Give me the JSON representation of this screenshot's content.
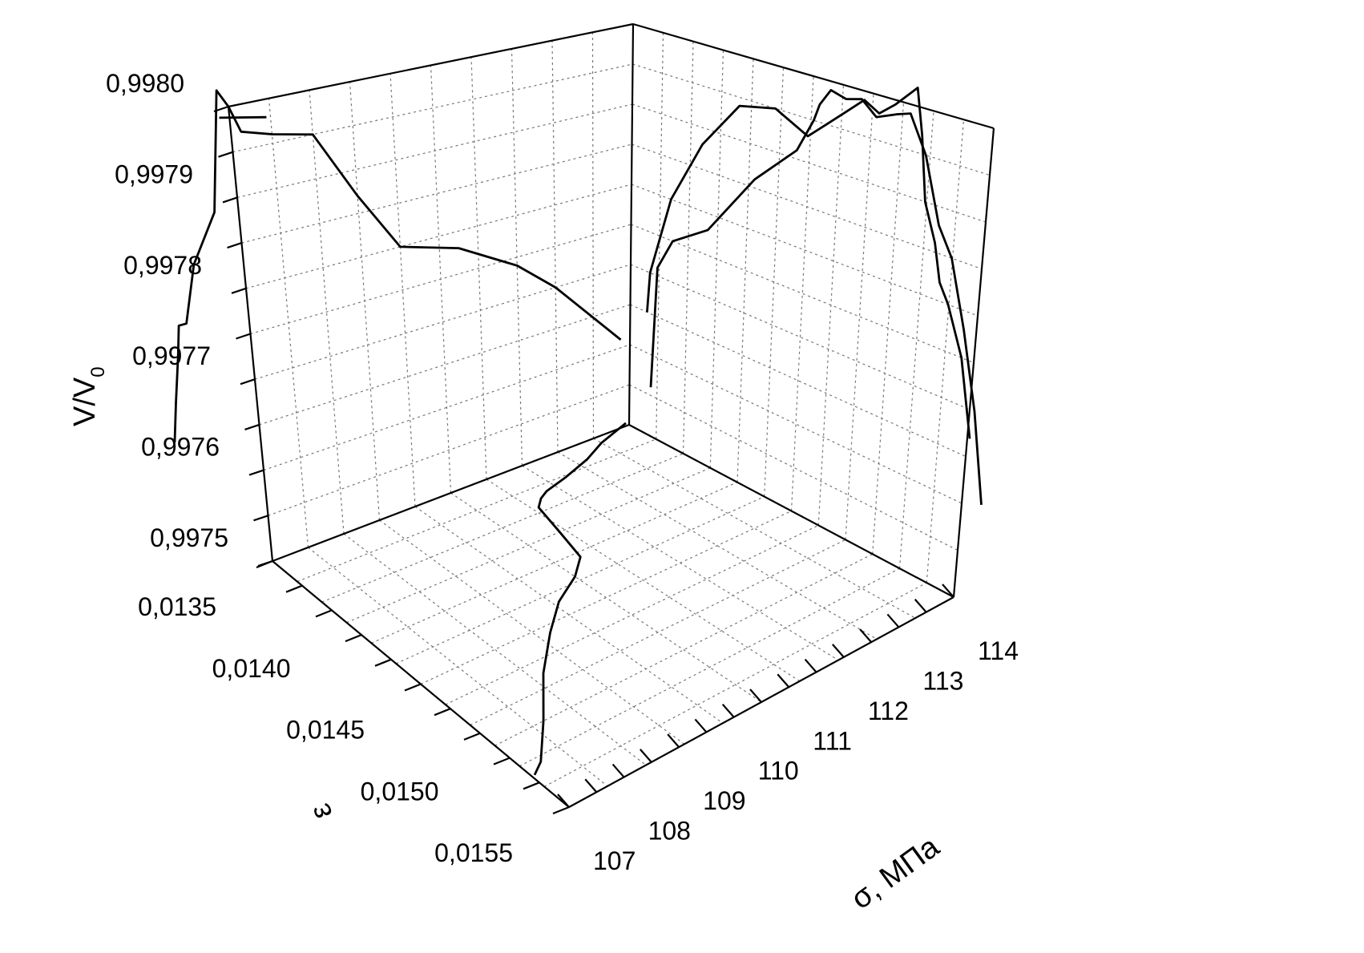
{
  "chart_data": {
    "type": "line",
    "projection": "3d",
    "axes": {
      "z": {
        "label_main": "V/V",
        "label_sub": "0",
        "range": [
          0.9975,
          0.998
        ],
        "ticks": [
          "0,9975",
          "0,9976",
          "0,9977",
          "0,9978",
          "0,9979",
          "0,9980"
        ]
      },
      "epsilon": {
        "label": "ε",
        "range": [
          0.0135,
          0.0155
        ],
        "ticks": [
          "0,0135",
          "0,0140",
          "0,0145",
          "0,0150",
          "0,0155"
        ]
      },
      "sigma": {
        "label": "σ, МПа",
        "range": [
          107,
          114
        ],
        "ticks": [
          "107",
          "108",
          "109",
          "110",
          "111",
          "112",
          "113",
          "114"
        ]
      }
    },
    "grid": true,
    "series": [
      {
        "projection": "sigma-V wall (at ε = 0,0135)",
        "points": [
          [
            107.45,
            0.99756
          ],
          [
            107.55,
            0.99771
          ],
          [
            107.85,
            0.99775
          ],
          [
            108.55,
            0.99778
          ],
          [
            109.45,
            0.99786
          ],
          [
            110.25,
            0.99791
          ],
          [
            110.55,
            0.99795
          ],
          [
            110.65,
            0.99797
          ],
          [
            110.85,
            0.99799
          ],
          [
            111.15,
            0.997985
          ],
          [
            111.45,
            0.99799
          ],
          [
            111.75,
            0.997975
          ],
          [
            112.15,
            0.997985
          ],
          [
            112.4,
            0.99799
          ],
          [
            112.75,
            0.99795
          ],
          [
            113.1,
            0.99788
          ],
          [
            113.4,
            0.99785
          ],
          [
            113.75,
            0.99778
          ],
          [
            114.1,
            0.9977
          ],
          [
            114.4,
            0.997608
          ]
        ]
      },
      {
        "projection": "sigma-V wall (upper branch)",
        "points": [
          [
            107.35,
            0.99765
          ],
          [
            107.4,
            0.9977
          ],
          [
            107.8,
            0.9978
          ],
          [
            108.4,
            0.99788
          ],
          [
            109.1,
            0.99794
          ],
          [
            109.8,
            0.99795
          ],
          [
            110.45,
            0.99793
          ],
          [
            110.8,
            0.99795
          ],
          [
            111.15,
            0.99797
          ],
          [
            111.5,
            0.99799
          ],
          [
            111.8,
            0.99798
          ],
          [
            112.1,
            0.997995
          ],
          [
            112.5,
            0.99802
          ],
          [
            112.65,
            0.99797
          ],
          [
            112.8,
            0.9979
          ],
          [
            113.05,
            0.99786
          ],
          [
            113.2,
            0.99782
          ],
          [
            113.4,
            0.9978
          ],
          [
            113.75,
            0.99775
          ],
          [
            114.05,
            0.99767
          ]
        ]
      },
      {
        "projection": "ε-V wall (at σ = 107)",
        "points": [
          [
            0.01545,
            0.99761
          ],
          [
            0.0151,
            0.9977
          ],
          [
            0.0149,
            0.99774
          ],
          [
            0.0146,
            0.99778
          ],
          [
            0.0143,
            0.9978
          ],
          [
            0.0141,
            0.99787
          ],
          [
            0.0139,
            0.99795
          ],
          [
            0.0137,
            0.99796
          ],
          [
            0.01355,
            0.99797
          ],
          [
            0.0135,
            0.998
          ],
          [
            0.01345,
            0.99802
          ],
          [
            0.01338,
            0.99789
          ],
          [
            0.01325,
            0.99784
          ],
          [
            0.01318,
            0.99778
          ],
          [
            0.01314,
            0.99778
          ],
          [
            0.01312,
            0.99775
          ],
          [
            0.01308,
            0.9977
          ],
          [
            0.01305,
            0.99766
          ]
        ]
      },
      {
        "projection": "ε-V wall (short stroke)",
        "points": [
          [
            0.01368,
            0.99798
          ],
          [
            0.01345,
            0.99799
          ]
        ]
      },
      {
        "projection": "floor (σ-ε plane)",
        "points": [
          [
            107.05,
            0.01525
          ],
          [
            107.3,
            0.0152
          ],
          [
            107.9,
            0.015
          ],
          [
            108.6,
            0.01475
          ],
          [
            109.3,
            0.01455
          ],
          [
            109.9,
            0.0144
          ],
          [
            110.5,
            0.0143
          ],
          [
            110.9,
            0.0142
          ],
          [
            111.1,
            0.014
          ],
          [
            111.3,
            0.0138
          ],
          [
            111.5,
            0.01375
          ],
          [
            111.7,
            0.01372
          ],
          [
            112.2,
            0.01368
          ],
          [
            112.8,
            0.01362
          ],
          [
            113.3,
            0.01355
          ],
          [
            113.6,
            0.01352
          ],
          [
            113.8,
            0.0135
          ],
          [
            114.0,
            0.01348
          ]
        ]
      }
    ]
  }
}
